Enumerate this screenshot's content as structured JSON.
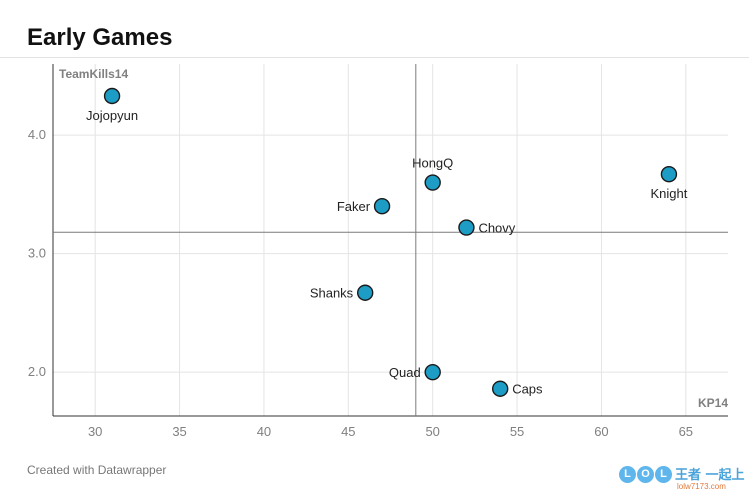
{
  "chart_data": {
    "type": "scatter",
    "title": "Early Games",
    "xlabel": "KP14",
    "ylabel": "TeamKills14",
    "xlim": [
      27.5,
      67.5
    ],
    "ylim": [
      1.63,
      4.6
    ],
    "xticks": [
      30,
      35,
      40,
      45,
      50,
      55,
      60,
      65
    ],
    "yticks": [
      2.0,
      3.0,
      4.0
    ],
    "xtick_labels": [
      "30",
      "35",
      "40",
      "45",
      "50",
      "55",
      "60",
      "65"
    ],
    "ytick_labels": [
      "2.0",
      "3.0",
      "4.0"
    ],
    "reference_lines": {
      "x": 49,
      "y": 3.18
    },
    "grid": true,
    "marker_color": "#1d9dc5",
    "points": [
      {
        "label": "Jojopyun",
        "x": 31,
        "y": 4.33,
        "label_pos": "below"
      },
      {
        "label": "HongQ",
        "x": 50,
        "y": 3.6,
        "label_pos": "above"
      },
      {
        "label": "Knight",
        "x": 64,
        "y": 3.67,
        "label_pos": "below"
      },
      {
        "label": "Faker",
        "x": 47,
        "y": 3.4,
        "label_pos": "left"
      },
      {
        "label": "Chovy",
        "x": 52,
        "y": 3.22,
        "label_pos": "right"
      },
      {
        "label": "Shanks",
        "x": 46,
        "y": 2.67,
        "label_pos": "left"
      },
      {
        "label": "Quad",
        "x": 50,
        "y": 2.0,
        "label_pos": "left"
      },
      {
        "label": "Caps",
        "x": 54,
        "y": 1.86,
        "label_pos": "right"
      }
    ]
  },
  "footer": {
    "credit": "Created with Datawrapper"
  },
  "watermark": {
    "logo": "LOL",
    "text": "王者 一起上",
    "url": "lolw7173.com"
  }
}
